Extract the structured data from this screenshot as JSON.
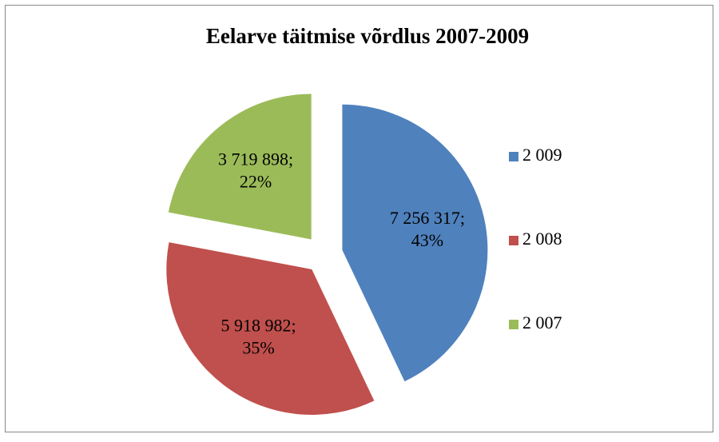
{
  "chart_data": {
    "type": "pie",
    "title": "Eelarve täitmise võrdlus 2007-2009",
    "categories": [
      "2 009",
      "2 008",
      "2 007"
    ],
    "values": [
      7256317,
      5918982,
      3719898
    ],
    "value_labels": [
      "7 256 317;",
      "5 918 982;",
      "3 719 898;"
    ],
    "percentages": [
      43,
      35,
      22
    ],
    "percentage_labels": [
      "43%",
      "35%",
      "22%"
    ],
    "colors": [
      "#4f81bd",
      "#c0504d",
      "#9bbb59"
    ],
    "exploded": true,
    "legend": "right"
  }
}
